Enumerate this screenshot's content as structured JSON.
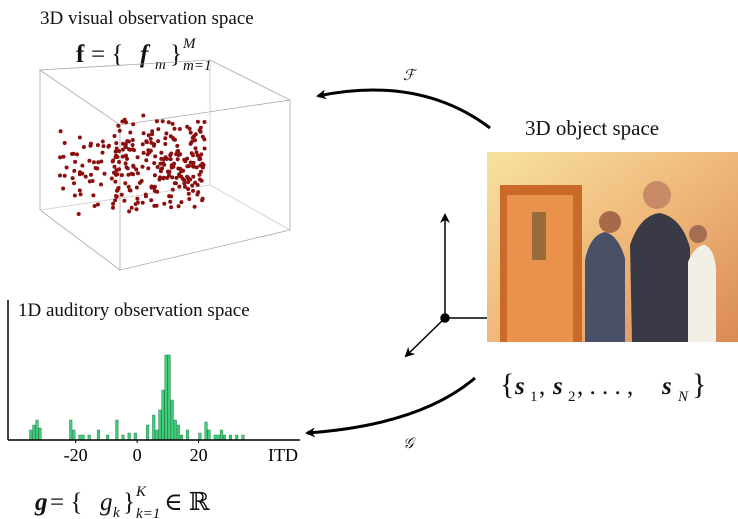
{
  "visual": {
    "title": "3D visual observation space",
    "formula": [
      "f",
      " = {",
      "f",
      "m",
      "}",
      "M",
      "m=1"
    ],
    "map": "ℱ"
  },
  "object": {
    "title": "3D object space",
    "formula": [
      "{",
      "s",
      "1",
      ", ",
      "s",
      "2",
      ", . . . , ",
      "s",
      "N",
      "}"
    ]
  },
  "auditory": {
    "title": "1D auditory observation space",
    "map": "𝒢",
    "formula": [
      "g",
      " = {",
      "g",
      "k",
      "}",
      "K",
      "k=1",
      " ∈ ℝ"
    ],
    "chart_data": {
      "type": "histogram",
      "x_label": "ITD",
      "color": "#3ccf7a",
      "xlim": [
        -42,
        53
      ],
      "ylim": [
        0,
        14
      ],
      "xticks": [
        -20,
        0,
        20
      ],
      "bins": [
        -35,
        -34,
        -33,
        -32,
        -31,
        -22,
        -21,
        -20,
        -19,
        -17,
        -16,
        -15,
        -13,
        -12,
        -10,
        -9,
        -7,
        -6,
        -5,
        -4,
        -3,
        -2,
        -1,
        0,
        3,
        4,
        5,
        6,
        7,
        8,
        9,
        10,
        11,
        12,
        13,
        14,
        15,
        16,
        17,
        20,
        21,
        22,
        23,
        24,
        25,
        27,
        28,
        29,
        30,
        31,
        32,
        33,
        34,
        35
      ],
      "values": [
        1,
        1.5,
        2,
        1.2,
        0,
        2,
        1,
        0,
        0.5,
        0,
        0.5,
        0,
        1,
        0,
        0.5,
        0,
        2,
        0,
        0.5,
        0,
        0.7,
        0,
        0.7,
        0,
        1.5,
        0,
        2.5,
        1,
        3,
        5,
        8.5,
        8.5,
        4,
        2,
        1.5,
        0.5,
        0,
        1,
        0,
        0.7,
        0,
        1.8,
        1,
        0,
        0.5,
        1,
        0.5,
        0,
        0.5,
        0,
        0.5,
        0,
        0.5
      ]
    }
  }
}
